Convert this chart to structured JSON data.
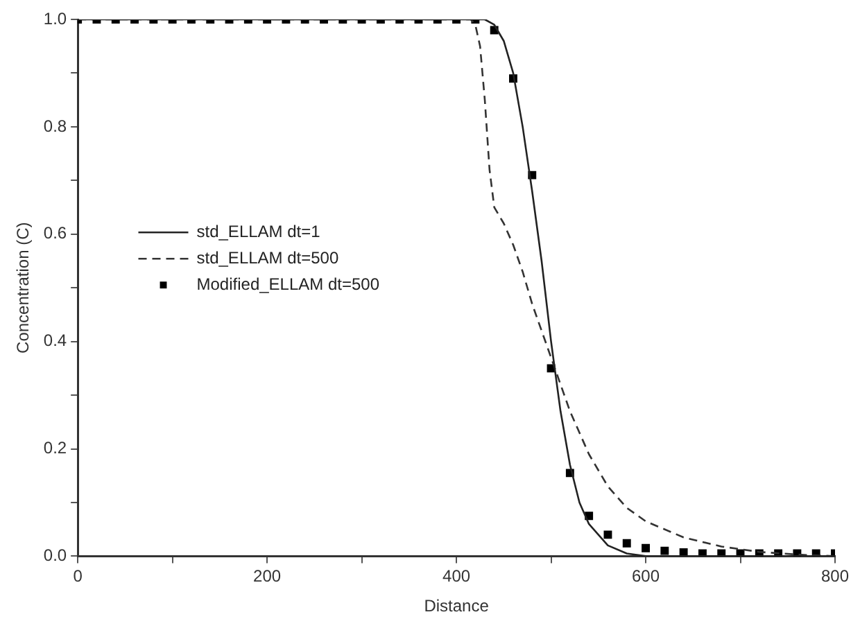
{
  "chart_data": {
    "type": "line",
    "xlabel": "Distance",
    "ylabel": "Concentration (C)",
    "xlim": [
      0,
      800
    ],
    "ylim": [
      0,
      1.0
    ],
    "xticks": [
      0,
      {
        "value": 100,
        "label": null
      },
      200,
      {
        "value": 300,
        "label": null
      },
      400,
      {
        "value": 500,
        "label": null
      },
      600,
      {
        "value": 700,
        "label": null
      },
      800
    ],
    "yticks": [
      {
        "value": 0,
        "label": "0.0"
      },
      {
        "value": 0.1,
        "label": null
      },
      0.2,
      {
        "value": 0.3,
        "label": null
      },
      0.4,
      {
        "value": 0.5,
        "label": null
      },
      0.6,
      {
        "value": 0.7,
        "label": null
      },
      0.8,
      {
        "value": 0.9,
        "label": null
      },
      {
        "value": 1,
        "label": "1.0"
      }
    ],
    "grid": false,
    "legend": "left",
    "series": [
      {
        "name": "std_ELLAM dt=1",
        "line_style": "solid",
        "marker": "none",
        "color": "#222222",
        "x": [
          0,
          430,
          440,
          450,
          460,
          470,
          480,
          490,
          500,
          510,
          520,
          530,
          540,
          560,
          580,
          600,
          800
        ],
        "values": [
          1,
          1,
          0.99,
          0.96,
          0.9,
          0.8,
          0.68,
          0.55,
          0.4,
          0.27,
          0.17,
          0.1,
          0.06,
          0.02,
          0.005,
          0,
          0
        ]
      },
      {
        "name": "std_ELLAM dt=500",
        "line_style": "dashed",
        "marker": "none",
        "color": "#333333",
        "x": [
          0,
          415,
          420,
          425,
          430,
          435,
          440,
          450,
          460,
          470,
          480,
          490,
          500,
          510,
          520,
          540,
          560,
          580,
          600,
          640,
          680,
          720,
          760,
          800
        ],
        "values": [
          1,
          1,
          0.99,
          0.95,
          0.85,
          0.72,
          0.65,
          0.62,
          0.58,
          0.53,
          0.47,
          0.42,
          0.37,
          0.32,
          0.27,
          0.19,
          0.13,
          0.09,
          0.065,
          0.035,
          0.018,
          0.008,
          0.003,
          0
        ]
      },
      {
        "name": "Modified_ELLAM dt=500",
        "type": "scatter",
        "marker": "square",
        "color": "#000000",
        "x": [
          0,
          20,
          40,
          60,
          80,
          100,
          120,
          140,
          160,
          180,
          200,
          220,
          240,
          260,
          280,
          300,
          320,
          340,
          360,
          380,
          400,
          420,
          440,
          460,
          480,
          500,
          520,
          540,
          560,
          580,
          600,
          620,
          640,
          660,
          680,
          700,
          720,
          740,
          760,
          780,
          800
        ],
        "values": [
          1,
          1,
          1,
          1,
          1,
          1,
          1,
          1,
          1,
          1,
          1,
          1,
          1,
          1,
          1,
          1,
          1,
          1,
          1,
          1,
          1,
          1,
          0.98,
          0.89,
          0.71,
          0.35,
          0.155,
          0.075,
          0.04,
          0.024,
          0.015,
          0.01,
          0.007,
          0.005,
          0.005,
          0.005,
          0.005,
          0.005,
          0.005,
          0.005,
          0.005
        ]
      }
    ]
  }
}
